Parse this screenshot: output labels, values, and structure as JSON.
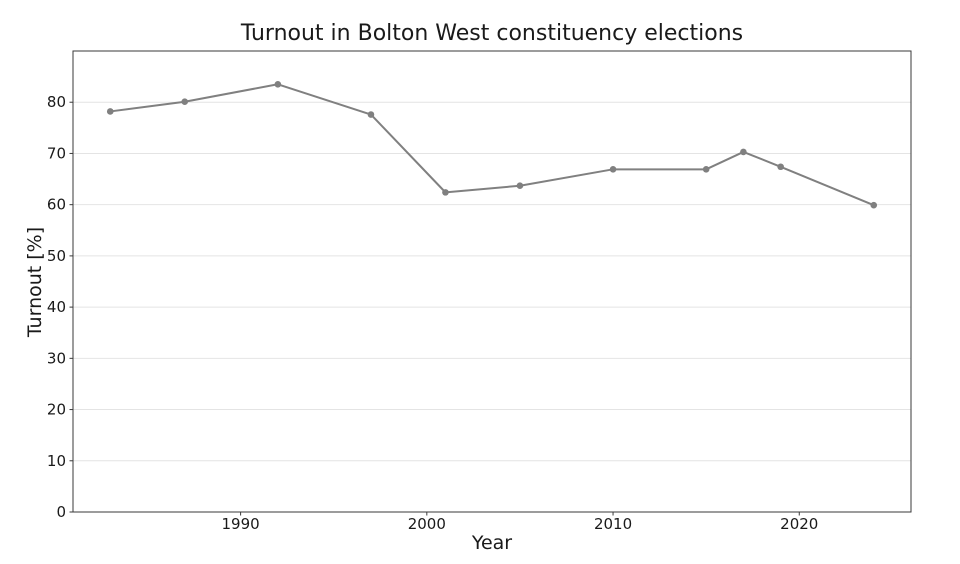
{
  "chart_data": {
    "type": "line",
    "title": "Turnout in Bolton West constituency elections",
    "xlabel": "Year",
    "ylabel": "Turnout [%]",
    "series": [
      {
        "name": "Turnout",
        "x": [
          1983,
          1987,
          1992,
          1997,
          2001,
          2005,
          2010,
          2015,
          2017,
          2019,
          2024
        ],
        "y": [
          78.2,
          80.1,
          83.5,
          77.6,
          62.4,
          63.7,
          66.9,
          66.9,
          70.3,
          67.4,
          59.9
        ]
      }
    ],
    "xticks": [
      1990,
      2000,
      2010,
      2020
    ],
    "yticks": [
      0,
      10,
      20,
      30,
      40,
      50,
      60,
      70,
      80
    ],
    "xlim": [
      1981,
      2026
    ],
    "ylim": [
      0,
      90
    ],
    "grid": "horizontal-only",
    "legend_position": "none",
    "marker": "circle",
    "colors": {
      "line": "#808080",
      "marker": "#808080",
      "grid": "#e4e4e4",
      "spine": "#3a3a3a",
      "text": "#1a1a1a",
      "background": "#ffffff"
    }
  }
}
